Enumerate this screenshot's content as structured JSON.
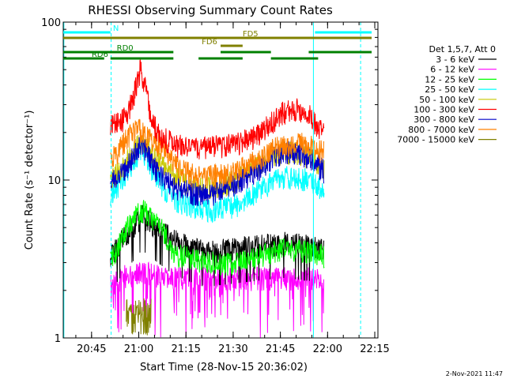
{
  "chart_data": {
    "type": "line",
    "title": "RHESSI Observing Summary Count Rates",
    "xlabel": "Start Time (28-Nov-15 20:36:02)",
    "ylabel": "Count Rate (s⁻¹ detector⁻¹)",
    "x_unit": "minutes since 20:36:02",
    "xlim": [
      0,
      100
    ],
    "ylim": [
      1,
      100
    ],
    "yscale": "log",
    "x_ticks": [
      {
        "x": 9.0,
        "label": "20:45"
      },
      {
        "x": 24.0,
        "label": "21:00"
      },
      {
        "x": 39.0,
        "label": "21:15"
      },
      {
        "x": 54.0,
        "label": "21:30"
      },
      {
        "x": 69.0,
        "label": "21:45"
      },
      {
        "x": 84.0,
        "label": "22:00"
      },
      {
        "x": 99.0,
        "label": "22:15"
      }
    ],
    "y_ticks": [
      {
        "y": 1,
        "label": "1"
      },
      {
        "y": 10,
        "label": "10"
      },
      {
        "y": 100,
        "label": "100"
      }
    ],
    "legend": {
      "header": "Det 1,5,7, Att 0",
      "placement": "right"
    },
    "series": [
      {
        "name": "3 - 6 keV",
        "color": "#000000",
        "data_start": 15,
        "data_end": 83,
        "points": [
          [
            15,
            3.3
          ],
          [
            20,
            4.5
          ],
          [
            25,
            6.0
          ],
          [
            30,
            5.0
          ],
          [
            35,
            4.2
          ],
          [
            40,
            3.8
          ],
          [
            45,
            3.5
          ],
          [
            50,
            3.6
          ],
          [
            55,
            3.7
          ],
          [
            60,
            3.8
          ],
          [
            65,
            3.9
          ],
          [
            70,
            4.0
          ],
          [
            75,
            3.9
          ],
          [
            80,
            3.8
          ],
          [
            83,
            3.6
          ]
        ]
      },
      {
        "name": "6 - 12 keV",
        "color": "#ff00ff",
        "data_start": 15,
        "data_end": 83,
        "points": [
          [
            15,
            2.2
          ],
          [
            20,
            2.5
          ],
          [
            25,
            2.6
          ],
          [
            30,
            2.5
          ],
          [
            35,
            2.4
          ],
          [
            40,
            2.4
          ],
          [
            45,
            2.4
          ],
          [
            50,
            2.4
          ],
          [
            55,
            2.4
          ],
          [
            60,
            2.4
          ],
          [
            65,
            2.4
          ],
          [
            70,
            2.4
          ],
          [
            75,
            2.4
          ],
          [
            80,
            2.4
          ],
          [
            83,
            2.3
          ]
        ]
      },
      {
        "name": "12 - 25 keV",
        "color": "#00ff00",
        "data_start": 15,
        "data_end": 83,
        "points": [
          [
            15,
            3.0
          ],
          [
            20,
            5.0
          ],
          [
            25,
            6.5
          ],
          [
            30,
            5.5
          ],
          [
            35,
            3.5
          ],
          [
            40,
            3.2
          ],
          [
            45,
            3.0
          ],
          [
            50,
            3.0
          ],
          [
            55,
            3.0
          ],
          [
            60,
            3.2
          ],
          [
            65,
            3.5
          ],
          [
            70,
            3.7
          ],
          [
            75,
            3.6
          ],
          [
            80,
            3.5
          ],
          [
            83,
            3.3
          ]
        ]
      },
      {
        "name": "25 - 50 keV",
        "color": "#00ffff",
        "data_start": 15,
        "data_end": 83,
        "points": [
          [
            15,
            8.0
          ],
          [
            20,
            11.0
          ],
          [
            25,
            16.0
          ],
          [
            28,
            12.0
          ],
          [
            32,
            9.0
          ],
          [
            36,
            7.5
          ],
          [
            40,
            7.0
          ],
          [
            45,
            6.5
          ],
          [
            50,
            6.6
          ],
          [
            55,
            7.0
          ],
          [
            60,
            8.0
          ],
          [
            65,
            9.5
          ],
          [
            70,
            10.5
          ],
          [
            75,
            10.5
          ],
          [
            80,
            9.5
          ],
          [
            83,
            8.5
          ]
        ]
      },
      {
        "name": "50 - 100 keV",
        "color": "#c8c800",
        "data_start": 15,
        "data_end": 83,
        "points": [
          [
            15,
            10.0
          ],
          [
            20,
            13.0
          ],
          [
            25,
            18.0
          ],
          [
            28,
            15.0
          ],
          [
            32,
            12.0
          ],
          [
            36,
            10.5
          ],
          [
            40,
            9.5
          ],
          [
            45,
            9.0
          ],
          [
            50,
            9.2
          ],
          [
            55,
            10.0
          ],
          [
            60,
            11.5
          ],
          [
            65,
            13.5
          ],
          [
            70,
            15.0
          ],
          [
            75,
            15.0
          ],
          [
            80,
            13.5
          ],
          [
            83,
            12.0
          ]
        ]
      },
      {
        "name": "100 - 300 keV",
        "color": "#ff0000",
        "data_start": 15,
        "data_end": 83,
        "points": [
          [
            15,
            22.0
          ],
          [
            18,
            23.0
          ],
          [
            21,
            28.0
          ],
          [
            23,
            38.0
          ],
          [
            24.5,
            50.0
          ],
          [
            26,
            40.0
          ],
          [
            28,
            24.0
          ],
          [
            31,
            19.0
          ],
          [
            35,
            17.0
          ],
          [
            40,
            16.0
          ],
          [
            45,
            16.0
          ],
          [
            50,
            16.5
          ],
          [
            55,
            17.0
          ],
          [
            60,
            18.5
          ],
          [
            65,
            22.0
          ],
          [
            70,
            27.0
          ],
          [
            74,
            28.5
          ],
          [
            78,
            26.0
          ],
          [
            81,
            22.0
          ],
          [
            83,
            20.0
          ]
        ]
      },
      {
        "name": "300 - 800 keV",
        "color": "#0000c8",
        "data_start": 15,
        "data_end": 83,
        "points": [
          [
            15,
            9.5
          ],
          [
            20,
            12.0
          ],
          [
            25,
            17.0
          ],
          [
            30,
            11.0
          ],
          [
            35,
            9.0
          ],
          [
            40,
            8.5
          ],
          [
            45,
            8.0
          ],
          [
            50,
            8.5
          ],
          [
            55,
            9.5
          ],
          [
            60,
            11.0
          ],
          [
            65,
            13.0
          ],
          [
            70,
            15.0
          ],
          [
            75,
            15.0
          ],
          [
            80,
            13.0
          ],
          [
            83,
            11.5
          ]
        ]
      },
      {
        "name": "800 - 7000 keV",
        "color": "#ff8000",
        "data_start": 15,
        "data_end": 83,
        "points": [
          [
            15,
            13.0
          ],
          [
            18,
            16.0
          ],
          [
            21,
            19.0
          ],
          [
            24,
            21.0
          ],
          [
            27,
            19.0
          ],
          [
            30,
            17.0
          ],
          [
            35,
            13.0
          ],
          [
            40,
            11.0
          ],
          [
            45,
            10.5
          ],
          [
            50,
            10.8
          ],
          [
            55,
            11.5
          ],
          [
            60,
            13.0
          ],
          [
            65,
            15.0
          ],
          [
            70,
            17.0
          ],
          [
            74,
            17.5
          ],
          [
            78,
            16.5
          ],
          [
            83,
            15.0
          ]
        ]
      },
      {
        "name": "7000 - 15000 keV",
        "color": "#808000",
        "data_start": 20,
        "data_end": 28,
        "points": [
          [
            20,
            1.4
          ],
          [
            22,
            1.6
          ],
          [
            24,
            1.7
          ],
          [
            26,
            1.6
          ],
          [
            28,
            1.4
          ]
        ]
      }
    ],
    "flags": [
      {
        "label": "N",
        "color": "#00ffff",
        "row": 1,
        "segments": [
          [
            0,
            15
          ],
          [
            80,
            98
          ]
        ]
      },
      {
        "label": "FD5",
        "color": "#808000",
        "row": 2,
        "segments": [
          [
            0,
            98
          ]
        ]
      },
      {
        "label": "FD6",
        "color": "#808000",
        "row": 3,
        "segments": [
          [
            50,
            57
          ]
        ]
      },
      {
        "label": "RD0",
        "color": "#008000",
        "row": 4,
        "segments": [
          [
            0,
            35
          ],
          [
            50,
            66
          ],
          [
            78,
            98
          ]
        ]
      },
      {
        "label": "RD6",
        "color": "#008000",
        "row": 5,
        "segments": [
          [
            0,
            13
          ],
          [
            15,
            35
          ],
          [
            43,
            57
          ],
          [
            66,
            81
          ]
        ]
      }
    ],
    "vertical_markers": [
      {
        "x": 0.2,
        "color": "#00ffff",
        "style": "solid"
      },
      {
        "x": 15.2,
        "color": "#00ffff",
        "style": "dashed"
      },
      {
        "x": 79.5,
        "color": "#00ffff",
        "style": "solid"
      },
      {
        "x": 94.5,
        "color": "#00ffff",
        "style": "dashed"
      }
    ],
    "timestamp": "2-Nov-2021 11:47"
  }
}
